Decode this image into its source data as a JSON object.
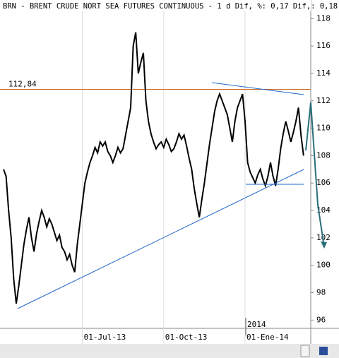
{
  "chart_data": {
    "type": "line",
    "title": "BRN - BRENT CRUDE NORT SEA FUTURES CONTINUOUS -   1 d Dif, %: 0,17 Dif,: 0,18",
    "categories": [
      null,
      null,
      null,
      null,
      null,
      null,
      null,
      null,
      null,
      null,
      null,
      null,
      null,
      null,
      null,
      null,
      null,
      null,
      null,
      null,
      null,
      null,
      null,
      null,
      null,
      null,
      null,
      null,
      null,
      null,
      null,
      "01-Jul-13",
      null,
      null,
      null,
      null,
      null,
      null,
      null,
      null,
      null,
      null,
      null,
      null,
      null,
      null,
      null,
      null,
      null,
      null,
      null,
      null,
      null,
      null,
      null,
      null,
      null,
      null,
      null,
      null,
      null,
      null,
      null,
      "01-Oct-13",
      null,
      null,
      null,
      null,
      null,
      null,
      null,
      null,
      null,
      null,
      null,
      null,
      null,
      null,
      null,
      null,
      null,
      null,
      null,
      null,
      null,
      null,
      null,
      null,
      null,
      null,
      null,
      null,
      null,
      null,
      null,
      "01-Ene-14",
      null,
      null,
      null,
      null,
      null,
      null,
      null,
      null,
      null,
      null,
      null,
      null,
      null,
      null,
      null,
      null,
      null,
      null,
      null,
      null,
      null,
      null,
      null
    ],
    "series": [
      {
        "color": "#000000",
        "values": [
          107,
          106.5,
          104,
          102,
          99,
          97.2,
          98.5,
          100,
          101.5,
          102.6,
          103.5,
          102,
          101,
          102.3,
          103.2,
          104,
          103.5,
          102.8,
          103.4,
          103,
          102.4,
          101.8,
          102.2,
          101.3,
          101,
          100.4,
          100.8,
          100,
          99.5,
          101.5,
          103,
          104.5,
          106,
          106.8,
          107.5,
          108,
          108.6,
          108.2,
          109,
          108.7,
          109,
          108.3,
          108,
          107.5,
          108,
          108.6,
          108.2,
          108.5,
          109.5,
          110.5,
          111.5,
          116,
          117,
          114,
          114.8,
          115.5,
          112,
          110.5,
          109.6,
          109,
          108.5,
          108.8,
          109,
          108.6,
          109.2,
          108.8,
          108.3,
          108.5,
          109,
          109.6,
          109.2,
          109.5,
          108.7,
          107.8,
          107,
          105.6,
          104.5,
          103.5,
          104.8,
          106,
          107.4,
          108.8,
          110,
          111.2,
          112,
          112.5,
          112,
          111.5,
          111,
          110,
          109,
          110.5,
          111.5,
          112,
          112.5,
          110.5,
          107.5,
          106.8,
          106.4,
          106,
          106.6,
          107,
          106.3,
          105.8,
          106.5,
          107.5,
          106.5,
          105.8,
          107,
          108.5,
          109.6,
          110.5,
          109.8,
          109,
          109.7,
          110.5,
          111.5,
          109.5,
          108
        ]
      }
    ],
    "ylim": [
      95.5,
      119.1
    ],
    "yticks": [
      96,
      98,
      100,
      102,
      104,
      106,
      108,
      110,
      112,
      114,
      116,
      118
    ],
    "level": {
      "value": 112.84,
      "label": "112,84",
      "color": "#c8641e"
    },
    "year_label": "2014"
  }
}
